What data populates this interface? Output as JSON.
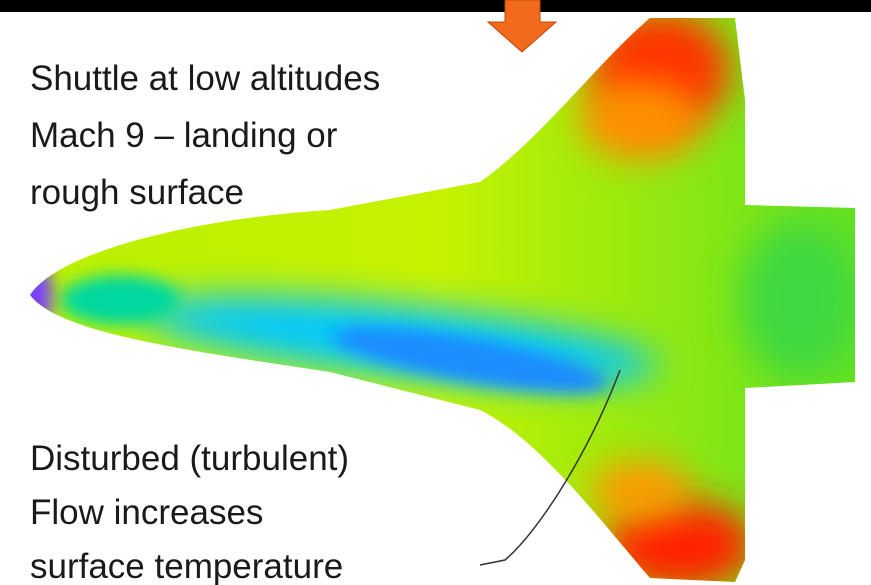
{
  "annotations": {
    "top": [
      "Shuttle at low altitudes",
      "Mach 9 – landing or",
      "rough surface"
    ],
    "bottom": [
      "Disturbed (turbulent)",
      "Flow increases",
      "surface temperature"
    ]
  }
}
